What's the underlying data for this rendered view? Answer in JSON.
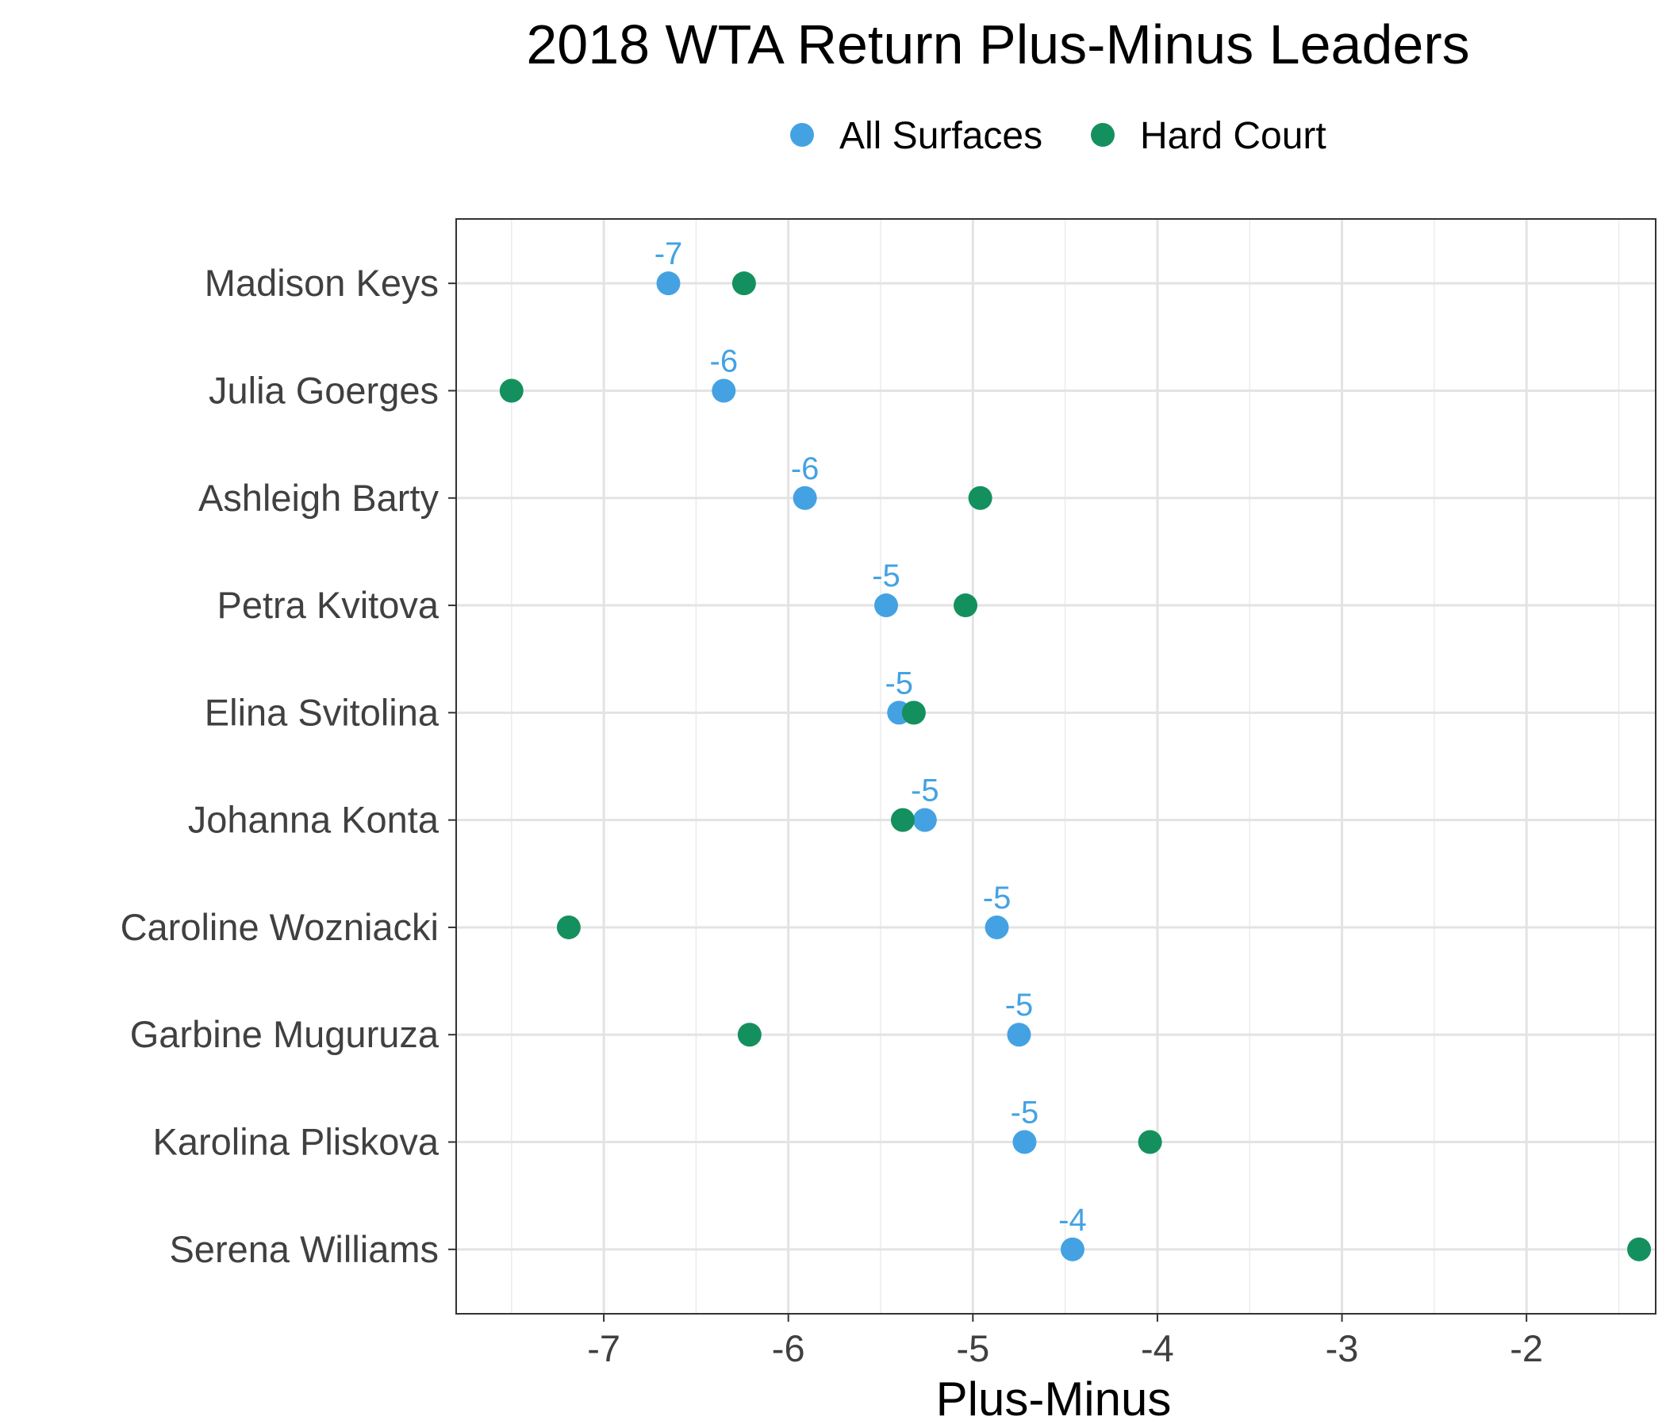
{
  "chart_data": {
    "type": "scatter",
    "title": "2018 WTA Return Plus-Minus Leaders",
    "xlabel": "Plus-Minus",
    "ylabel": "",
    "xlim": [
      -7.8,
      -1.3
    ],
    "x_ticks": [
      -7,
      -6,
      -5,
      -4,
      -3,
      -2
    ],
    "grid": true,
    "legend_position": "top",
    "categories": [
      "Madison Keys",
      "Julia Goerges",
      "Ashleigh Barty",
      "Petra Kvitova",
      "Elina Svitolina",
      "Johanna Konta",
      "Caroline Wozniacki",
      "Garbine Muguruza",
      "Karolina Pliskova",
      "Serena Williams"
    ],
    "series": [
      {
        "name": "All Surfaces",
        "color": "#44a2e3",
        "values": [
          -6.65,
          -6.35,
          -5.91,
          -5.47,
          -5.4,
          -5.26,
          -4.87,
          -4.75,
          -4.72,
          -4.46
        ],
        "labels": [
          "-7",
          "-6",
          "-6",
          "-5",
          "-5",
          "-5",
          "-5",
          "-5",
          "-5",
          "-4"
        ]
      },
      {
        "name": "Hard Court",
        "color": "#14905e",
        "values": [
          -6.24,
          -7.5,
          -4.96,
          -5.04,
          -5.32,
          -5.38,
          -7.19,
          -6.21,
          -4.04,
          -1.39
        ]
      }
    ]
  }
}
